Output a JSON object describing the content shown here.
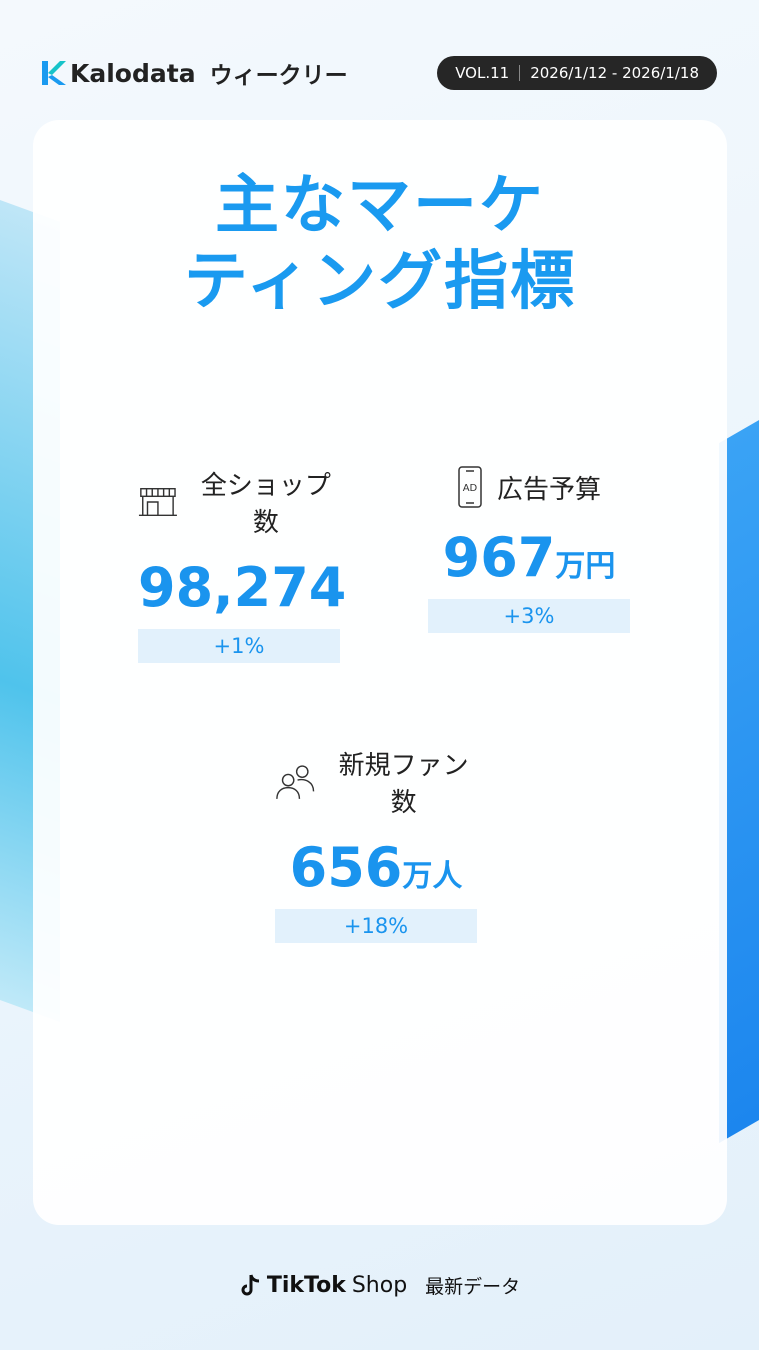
{
  "header": {
    "brand": "Kalodata",
    "subtitle": "ウィークリー",
    "volume": "VOL.11",
    "date_range": "2026/1/12 - 2026/1/18"
  },
  "title": {
    "line1": "主なマーケ",
    "line2": "ティング指標"
  },
  "metrics": [
    {
      "icon": "store-icon",
      "label": "全ショップ数",
      "value": "98,274",
      "unit": "",
      "change": "+1%"
    },
    {
      "icon": "ad-phone-icon",
      "label": "広告予算",
      "value": "967",
      "unit": "万円",
      "change": "+3%"
    },
    {
      "icon": "users-icon",
      "label": "新規ファン数",
      "value": "656",
      "unit": "万人",
      "change": "+18%"
    }
  ],
  "footer": {
    "tiktok": "TikTok",
    "shop": "Shop",
    "latest": "最新データ"
  },
  "colors": {
    "accent": "#1a94ee",
    "change_bg": "#e2f1fc",
    "pill_bg": "#262626"
  }
}
